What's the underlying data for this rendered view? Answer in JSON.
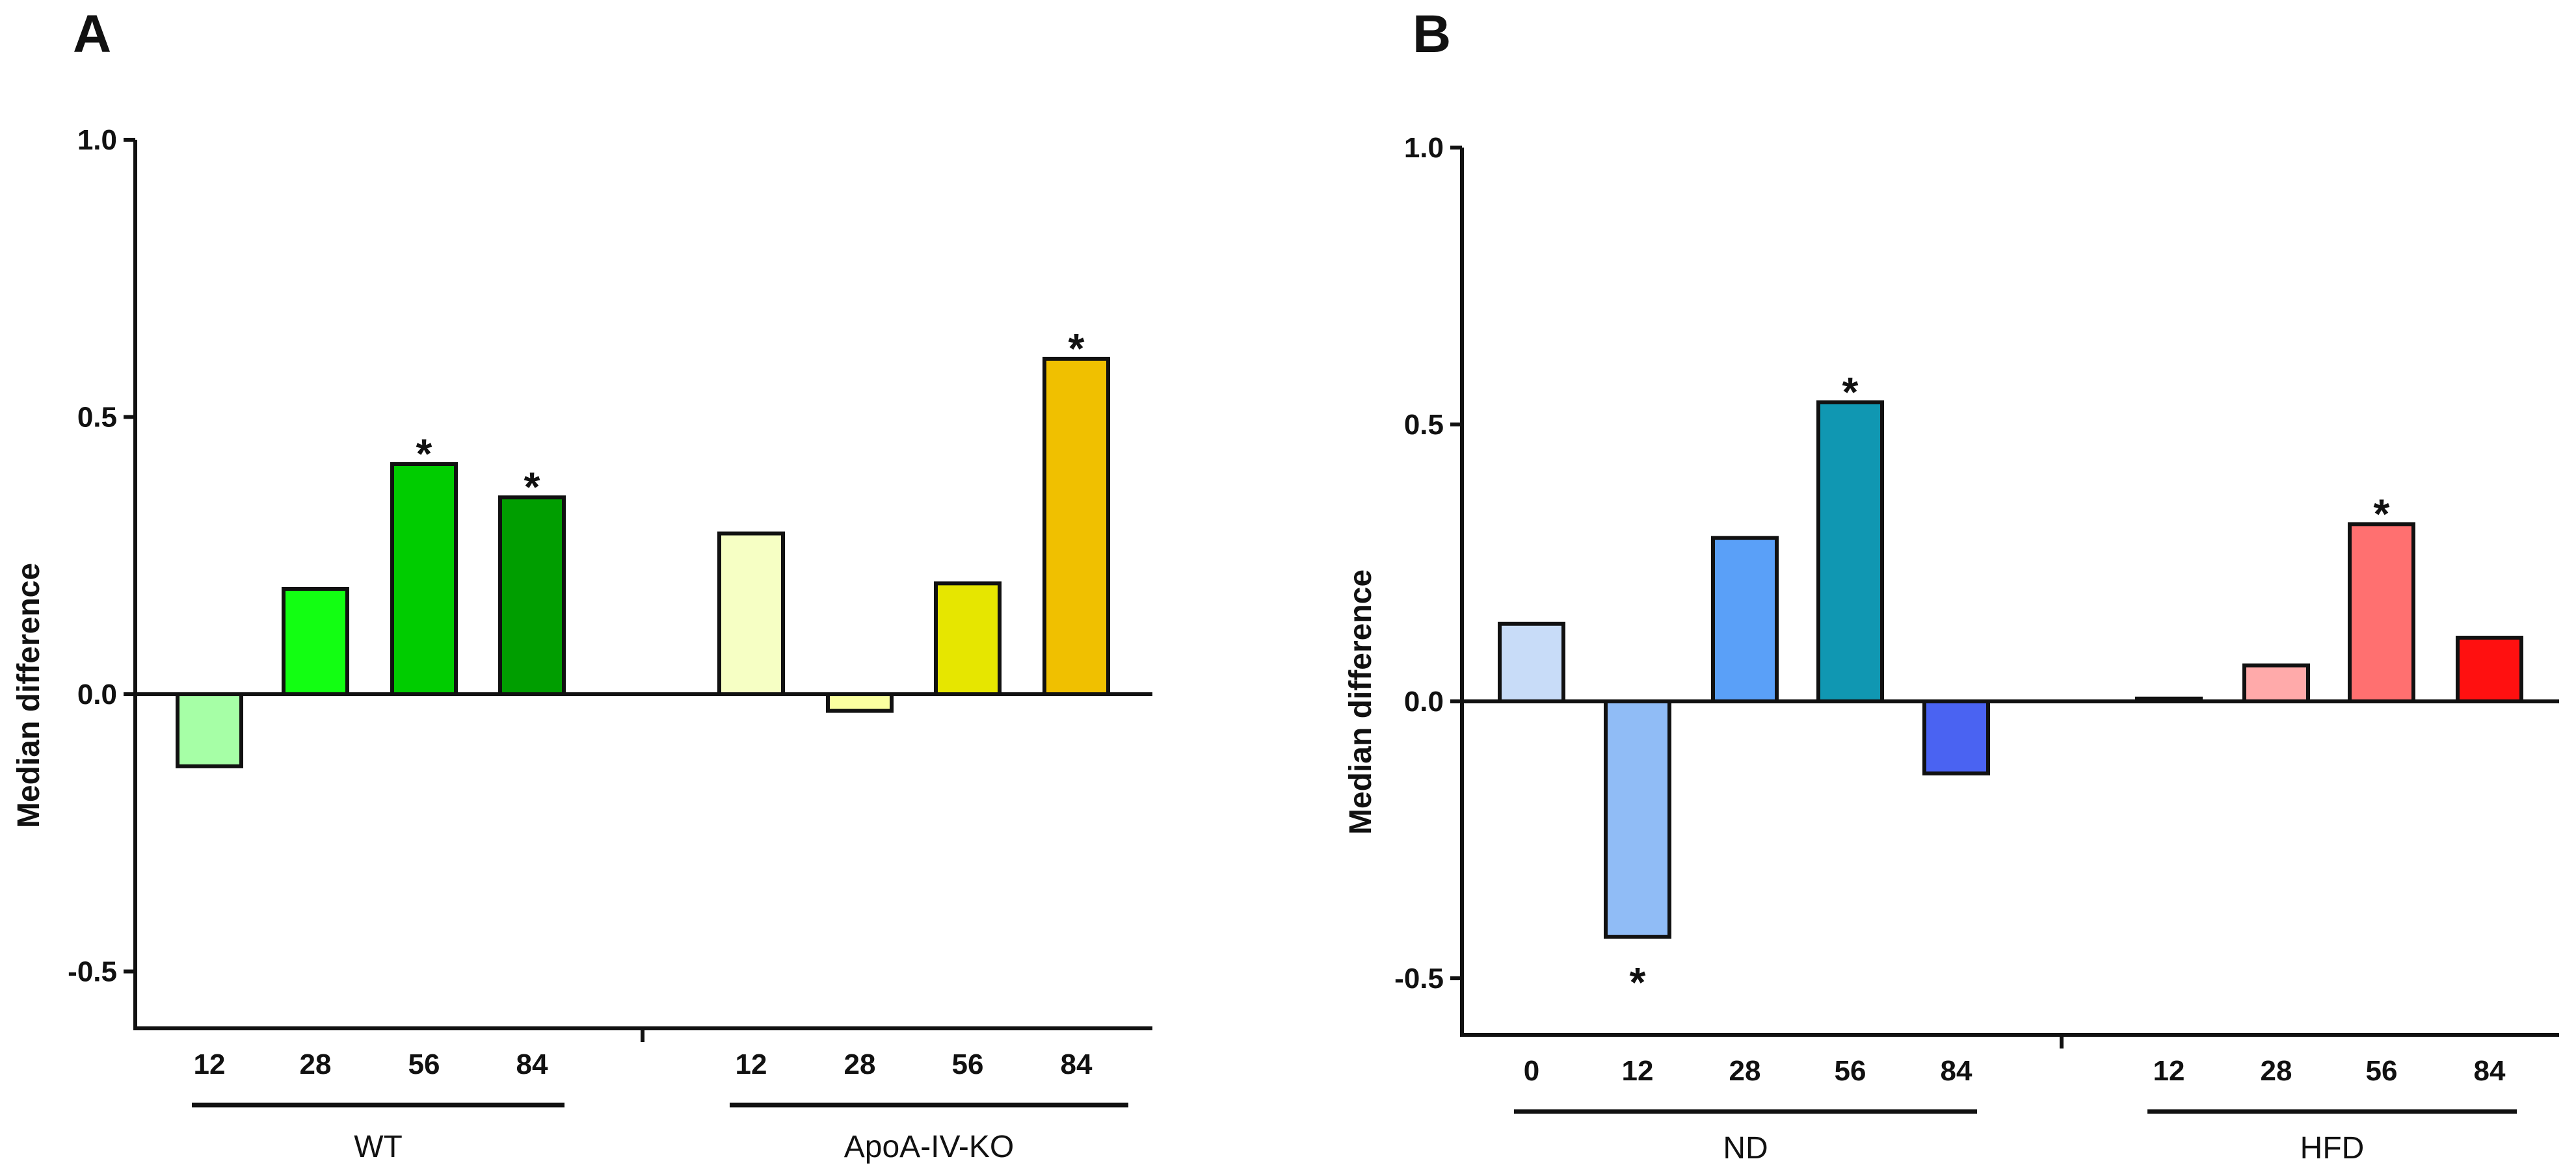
{
  "chart_data": [
    {
      "panel": "A",
      "type": "bar",
      "ylabel": "Median difference",
      "ylim": [
        -0.6,
        1.0
      ],
      "yticks": [
        1.0,
        0.5,
        0.0,
        -0.5
      ],
      "ytick_labels": [
        "1.0",
        "0.5",
        "0.0",
        "-0.5"
      ],
      "groups": [
        {
          "name": "WT",
          "categories": [
            "12",
            "28",
            "56",
            "84"
          ],
          "values": [
            -0.13,
            0.19,
            0.415,
            0.355
          ],
          "significant": [
            false,
            false,
            true,
            true
          ],
          "colors": [
            "#a6ffa6",
            "#12ff12",
            "#00cc00",
            "#009e00"
          ]
        },
        {
          "name": "ApoA-IV-KO",
          "categories": [
            "12",
            "28",
            "56",
            "84"
          ],
          "values": [
            0.29,
            -0.03,
            0.2,
            0.605
          ],
          "significant": [
            false,
            false,
            false,
            true
          ],
          "colors": [
            "#f6ffc4",
            "#faffa0",
            "#e6e600",
            "#f0c000"
          ]
        }
      ],
      "annotation": "*"
    },
    {
      "panel": "B",
      "type": "bar",
      "ylabel": "Median difference",
      "ylim": [
        -0.6,
        1.0
      ],
      "yticks": [
        1.0,
        0.5,
        0.0,
        -0.5
      ],
      "ytick_labels": [
        "1.0",
        "0.5",
        "0.0",
        "-0.5"
      ],
      "groups": [
        {
          "name": "ND",
          "categories": [
            "0",
            "12",
            "28",
            "56",
            "84"
          ],
          "values": [
            0.14,
            -0.425,
            0.295,
            0.54,
            -0.13
          ],
          "significant": [
            false,
            true,
            false,
            true,
            false
          ],
          "colors": [
            "#c8dcf8",
            "#90bcf6",
            "#5aa0f8",
            "#1097b2",
            "#4a63f2"
          ]
        },
        {
          "name": "HFD",
          "categories": [
            "12",
            "28",
            "56",
            "84"
          ],
          "values": [
            0.005,
            0.065,
            0.32,
            0.115
          ],
          "significant": [
            false,
            false,
            true,
            false
          ],
          "colors": [
            "#ffffff",
            "#ffaaaa",
            "#ff7070",
            "#ff1010"
          ]
        }
      ],
      "annotation": "*"
    }
  ]
}
